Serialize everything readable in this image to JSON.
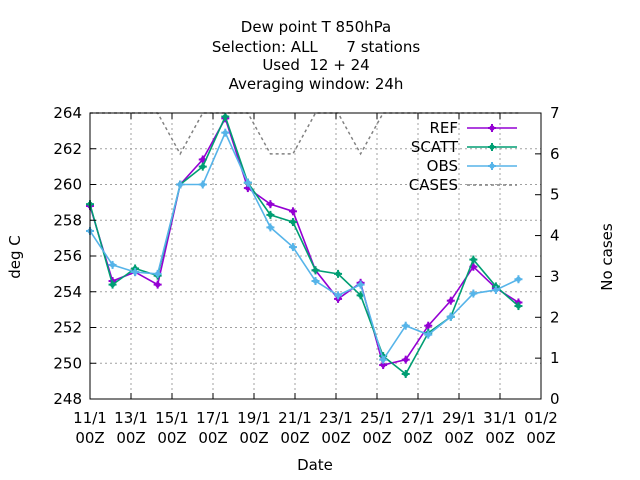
{
  "chart_data": {
    "type": "line",
    "title_lines": [
      "Dew point T 850hPa",
      "Selection: ALL      7 stations",
      "Used  12 + 24",
      "Averaging window: 24h"
    ],
    "xlabel": "Date",
    "ylabel": "deg C",
    "y2label": "No cases",
    "x_tick_labels": [
      [
        "11/1",
        "00Z"
      ],
      [
        "13/1",
        "00Z"
      ],
      [
        "15/1",
        "00Z"
      ],
      [
        "17/1",
        "00Z"
      ],
      [
        "19/1",
        "00Z"
      ],
      [
        "21/1",
        "00Z"
      ],
      [
        "23/1",
        "00Z"
      ],
      [
        "25/1",
        "00Z"
      ],
      [
        "27/1",
        "00Z"
      ],
      [
        "29/1",
        "00Z"
      ],
      [
        "31/1",
        "00Z"
      ],
      [
        "01/2",
        "00Z"
      ]
    ],
    "x_unit": "days from 11/1 00Z",
    "xlim": [
      0,
      20
    ],
    "ylim": [
      248,
      264
    ],
    "y_ticks": [
      248,
      250,
      252,
      254,
      256,
      258,
      260,
      262,
      264
    ],
    "y2lim": [
      0,
      7
    ],
    "y2_ticks": [
      0,
      1,
      2,
      3,
      4,
      5,
      6,
      7
    ],
    "grid": true,
    "legend_position": "top-right",
    "series": [
      {
        "name": "REF",
        "axis": "y",
        "color": "#9400d3",
        "marker": "plus-filled",
        "dashed": false,
        "x": [
          0,
          1,
          2,
          3,
          4,
          5,
          6,
          7,
          8,
          9,
          10,
          11,
          12,
          13,
          14,
          15,
          16,
          17,
          18,
          19
        ],
        "y": [
          258.8,
          254.6,
          255.1,
          254.4,
          260.0,
          261.4,
          263.7,
          259.8,
          258.9,
          258.5,
          255.2,
          253.6,
          254.5,
          249.9,
          250.2,
          252.1,
          253.5,
          255.4,
          254.2,
          253.4
        ]
      },
      {
        "name": "SCATT",
        "axis": "y",
        "color": "#009e73",
        "marker": "plus-filled",
        "dashed": false,
        "x": [
          0,
          1,
          2,
          3,
          4,
          5,
          6,
          7,
          8,
          9,
          10,
          11,
          12,
          13,
          14,
          15,
          16,
          17,
          18,
          19
        ],
        "y": [
          258.9,
          254.4,
          255.3,
          254.9,
          260.0,
          261.0,
          263.8,
          260.1,
          258.3,
          257.9,
          255.2,
          255.0,
          253.8,
          250.4,
          249.4,
          251.7,
          252.6,
          255.8,
          254.3,
          253.2
        ]
      },
      {
        "name": "OBS",
        "axis": "y",
        "color": "#56b4e9",
        "marker": "plus-filled",
        "dashed": false,
        "x": [
          0,
          1,
          2,
          3,
          4,
          5,
          6,
          7,
          8,
          9,
          10,
          11,
          12,
          13,
          14,
          15,
          16,
          17,
          18,
          19
        ],
        "y": [
          257.4,
          255.5,
          255.1,
          255.0,
          260.0,
          260.0,
          262.9,
          260.1,
          257.6,
          256.5,
          254.6,
          253.8,
          254.4,
          250.2,
          252.1,
          251.6,
          252.6,
          253.9,
          254.1,
          254.7
        ]
      },
      {
        "name": "CASES",
        "axis": "y2",
        "color": "#808080",
        "marker": "none",
        "dashed": true,
        "x": [
          0,
          1,
          2,
          3,
          4,
          5,
          6,
          7,
          8,
          9,
          10,
          11,
          12,
          13,
          14,
          15,
          16,
          17,
          18,
          19
        ],
        "y": [
          7,
          7,
          7,
          7,
          6,
          7,
          7,
          7,
          6,
          6,
          7,
          7,
          6,
          7,
          7,
          7,
          7,
          7,
          7,
          7
        ]
      }
    ]
  }
}
